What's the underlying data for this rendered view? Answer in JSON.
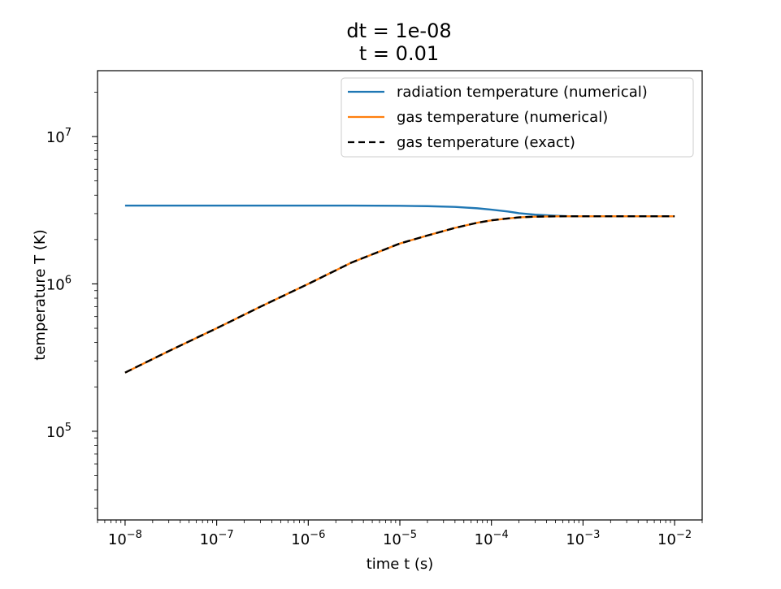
{
  "chart_data": {
    "type": "line",
    "title_lines": [
      "dt = 1e-08",
      "t = 0.01"
    ],
    "xlabel": "time t (s)",
    "ylabel": "temperature T (K)",
    "xscale": "log",
    "yscale": "log",
    "xlim": [
      5e-09,
      0.02
    ],
    "ylim": [
      25000,
      28000000
    ],
    "grid": false,
    "legend_position": "top-right",
    "x_ticks": [
      {
        "base": "10",
        "exp": "−8",
        "value": 1e-08
      },
      {
        "base": "10",
        "exp": "−7",
        "value": 1e-07
      },
      {
        "base": "10",
        "exp": "−6",
        "value": 1e-06
      },
      {
        "base": "10",
        "exp": "−5",
        "value": 1e-05
      },
      {
        "base": "10",
        "exp": "−4",
        "value": 0.0001
      },
      {
        "base": "10",
        "exp": "−3",
        "value": 0.001
      },
      {
        "base": "10",
        "exp": "−2",
        "value": 0.01
      }
    ],
    "y_ticks": [
      {
        "base": "10",
        "exp": "5",
        "value": 100000
      },
      {
        "base": "10",
        "exp": "6",
        "value": 1000000
      },
      {
        "base": "10",
        "exp": "7",
        "value": 10000000
      }
    ],
    "series": [
      {
        "name": "radiation temperature (numerical)",
        "color": "#1f77b4",
        "style": "solid",
        "x": [
          1e-08,
          1e-07,
          1e-06,
          3e-06,
          1e-05,
          2e-05,
          4e-05,
          7e-05,
          0.0001,
          0.00015,
          0.0002,
          0.0003,
          0.0005,
          0.0007,
          0.001,
          0.003,
          0.01
        ],
        "y": [
          3400000,
          3400000,
          3400000,
          3400000,
          3390000,
          3370000,
          3330000,
          3260000,
          3190000,
          3100000,
          3020000,
          2950000,
          2900000,
          2880000,
          2880000,
          2880000,
          2880000
        ]
      },
      {
        "name": "gas temperature (numerical)",
        "color": "#ff7f0e",
        "style": "solid",
        "x": [
          1e-08,
          3e-08,
          1e-07,
          3e-07,
          1e-06,
          3e-06,
          1e-05,
          2e-05,
          4e-05,
          7e-05,
          0.0001,
          0.00015,
          0.0002,
          0.0003,
          0.0005,
          0.0007,
          0.001,
          0.003,
          0.01
        ],
        "y": [
          250000,
          350000,
          500000,
          700000,
          1000000,
          1400000,
          1880000,
          2130000,
          2400000,
          2600000,
          2700000,
          2780000,
          2830000,
          2860000,
          2875000,
          2880000,
          2880000,
          2880000,
          2880000
        ]
      },
      {
        "name": "gas temperature (exact)",
        "color": "#000000",
        "style": "dashed",
        "x": [
          1e-08,
          3e-08,
          1e-07,
          3e-07,
          1e-06,
          3e-06,
          1e-05,
          2e-05,
          4e-05,
          7e-05,
          0.0001,
          0.00015,
          0.0002,
          0.0003,
          0.0005,
          0.0007,
          0.001,
          0.003,
          0.01
        ],
        "y": [
          250000,
          350000,
          500000,
          700000,
          1000000,
          1400000,
          1880000,
          2130000,
          2400000,
          2600000,
          2700000,
          2780000,
          2830000,
          2860000,
          2875000,
          2880000,
          2880000,
          2880000,
          2880000
        ]
      }
    ]
  }
}
